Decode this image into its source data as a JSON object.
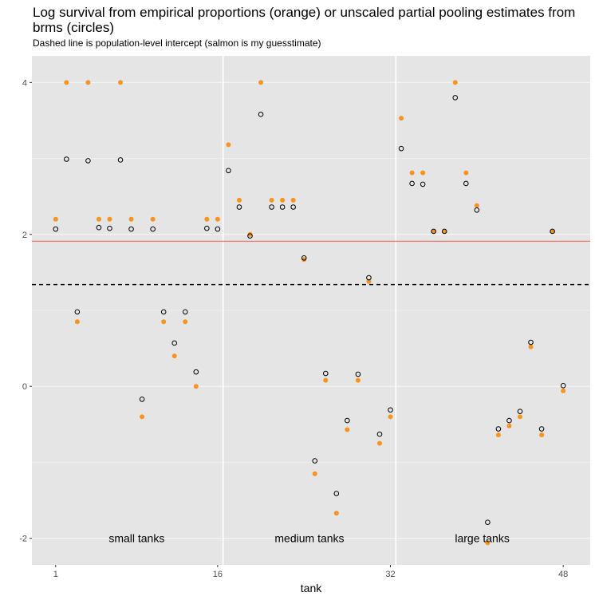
{
  "chart_data": {
    "type": "scatter",
    "title": "Log survival from empirical proportions (orange) or unscaled partial pooling estimates from brms (circles)",
    "subtitle": "Dashed line is population-level intercept (salmon is my guesstimate)",
    "xlabel": "tank",
    "ylabel": "",
    "xlim": [
      -1.2,
      50.5
    ],
    "ylim": [
      -2.35,
      4.35
    ],
    "x_ticks": [
      1,
      16,
      32,
      48
    ],
    "y_ticks": [
      -2,
      0,
      2,
      4
    ],
    "vertical_lines": [
      16.5,
      32.5
    ],
    "hlines": [
      {
        "y": 1.34,
        "style": "dashed",
        "color": "#000000"
      },
      {
        "y": 1.91,
        "style": "solid",
        "color": "#F8766D"
      }
    ],
    "annotations": [
      {
        "text": "small tanks",
        "x": 8.5,
        "y": -2.0
      },
      {
        "text": "medium tanks",
        "x": 24.5,
        "y": -2.0
      },
      {
        "text": "large tanks",
        "x": 40.5,
        "y": -2.0
      }
    ],
    "colors": {
      "empirical": "#F7931E",
      "estimate": "#000000",
      "panel": "#E5E5E5",
      "grid": "#F5F5F5",
      "guess": "#F8766D"
    },
    "series": [
      {
        "name": "empirical",
        "style": "filled",
        "x": [
          1,
          2,
          3,
          4,
          5,
          6,
          7,
          8,
          9,
          10,
          11,
          12,
          13,
          14,
          15,
          16,
          17,
          18,
          19,
          20,
          21,
          22,
          23,
          24,
          25,
          26,
          27,
          28,
          29,
          30,
          31,
          32,
          33,
          34,
          35,
          36,
          37,
          38,
          39,
          40,
          41,
          42,
          43,
          44,
          45,
          46,
          47,
          48
        ],
        "y": [
          2.2,
          4.0,
          0.85,
          4.0,
          2.2,
          2.2,
          4.0,
          2.2,
          -0.4,
          2.2,
          0.85,
          0.4,
          0.85,
          0.0,
          2.2,
          2.2,
          3.18,
          2.45,
          2.0,
          4.0,
          2.45,
          2.45,
          2.45,
          1.67,
          -1.15,
          0.08,
          -1.67,
          -0.57,
          0.08,
          1.38,
          -0.75,
          -0.4,
          3.53,
          2.81,
          2.81,
          2.04,
          2.04,
          4.0,
          2.81,
          2.38,
          -2.06,
          -0.64,
          -0.52,
          -0.4,
          0.52,
          -0.64,
          2.04,
          -0.06
        ]
      },
      {
        "name": "estimate",
        "style": "open",
        "x": [
          1,
          2,
          3,
          4,
          5,
          6,
          7,
          8,
          9,
          10,
          11,
          12,
          13,
          14,
          15,
          16,
          17,
          18,
          19,
          20,
          21,
          22,
          23,
          24,
          25,
          26,
          27,
          28,
          29,
          30,
          31,
          32,
          33,
          34,
          35,
          36,
          37,
          38,
          39,
          40,
          41,
          42,
          43,
          44,
          45,
          46,
          47,
          48
        ],
        "y": [
          2.07,
          2.99,
          0.98,
          2.97,
          2.09,
          2.08,
          2.98,
          2.07,
          -0.17,
          2.07,
          0.98,
          0.57,
          0.98,
          0.19,
          2.08,
          2.07,
          2.84,
          2.36,
          1.98,
          3.58,
          2.36,
          2.36,
          2.36,
          1.69,
          -0.98,
          0.17,
          -1.41,
          -0.45,
          0.16,
          1.43,
          -0.63,
          -0.31,
          3.13,
          2.67,
          2.66,
          2.04,
          2.04,
          3.8,
          2.67,
          2.32,
          -1.79,
          -0.56,
          -0.45,
          -0.33,
          0.58,
          -0.56,
          2.04,
          0.01
        ]
      }
    ]
  }
}
